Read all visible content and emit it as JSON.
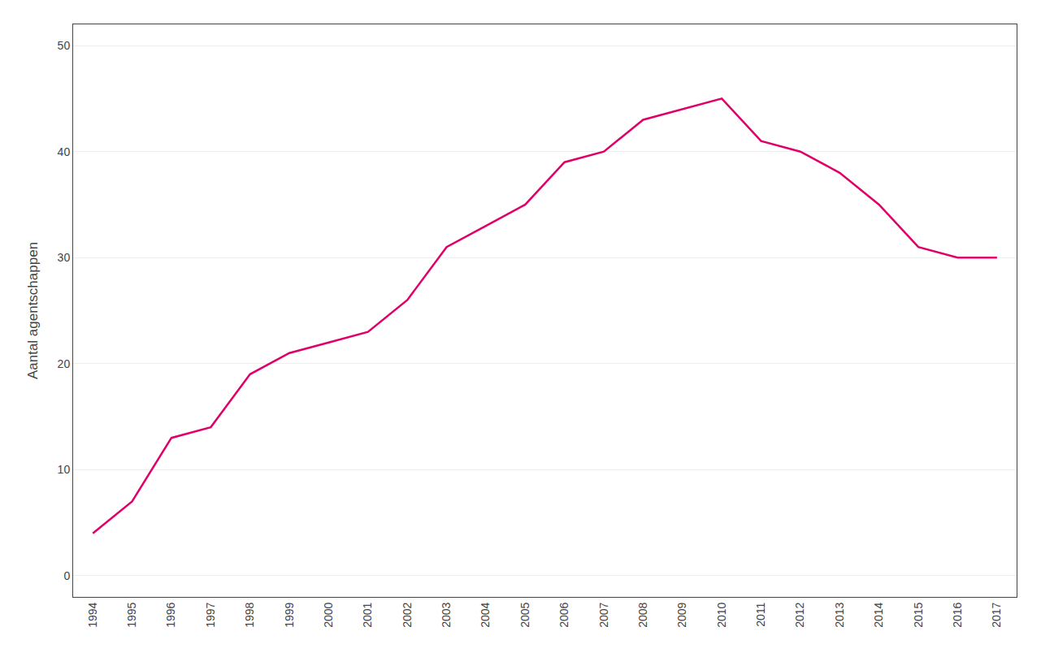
{
  "chart_data": {
    "type": "line",
    "x": [
      1994,
      1995,
      1996,
      1997,
      1998,
      1999,
      2000,
      2001,
      2002,
      2003,
      2004,
      2005,
      2006,
      2007,
      2008,
      2009,
      2010,
      2011,
      2012,
      2013,
      2014,
      2015,
      2016,
      2017
    ],
    "values": [
      4,
      7,
      13,
      14,
      19,
      21,
      22,
      23,
      26,
      31,
      33,
      35,
      39,
      40,
      43,
      44,
      45,
      41,
      40,
      38,
      35,
      31,
      30,
      30
    ],
    "color": "#E0006A",
    "ylabel": "Aantal agentschappen",
    "xlim": [
      1993.5,
      2017.5
    ],
    "xticks": [
      1994,
      1995,
      1996,
      1997,
      1998,
      1999,
      2000,
      2001,
      2002,
      2003,
      2004,
      2005,
      2006,
      2007,
      2008,
      2009,
      2010,
      2011,
      2012,
      2013,
      2014,
      2015,
      2016,
      2017
    ],
    "ylim": [
      -2,
      52
    ],
    "yticks": [
      0,
      10,
      20,
      30,
      40,
      50
    ],
    "grid": true
  }
}
